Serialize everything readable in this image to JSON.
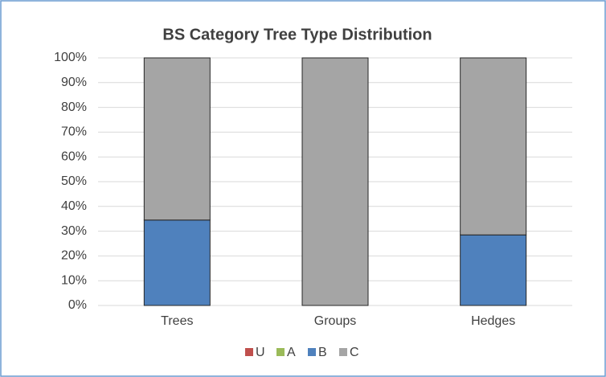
{
  "chart_data": {
    "type": "stacked_bar_100",
    "title": "BS Category Tree Type Distribution",
    "categories": [
      "Trees",
      "Groups",
      "Hedges"
    ],
    "series": [
      {
        "name": "U",
        "color": "#c0504d",
        "values": [
          0,
          0,
          0
        ]
      },
      {
        "name": "A",
        "color": "#9bbb59",
        "values": [
          0,
          0,
          0
        ]
      },
      {
        "name": "B",
        "color": "#4f81bd",
        "values": [
          34.5,
          0,
          28.5
        ]
      },
      {
        "name": "C",
        "color": "#a5a5a5",
        "values": [
          65.5,
          100,
          71.5
        ]
      }
    ],
    "ylim": [
      0,
      100
    ],
    "yticks": [
      {
        "value": 0,
        "label": "0%"
      },
      {
        "value": 10,
        "label": "10%"
      },
      {
        "value": 20,
        "label": "20%"
      },
      {
        "value": 30,
        "label": "30%"
      },
      {
        "value": 40,
        "label": "40%"
      },
      {
        "value": 50,
        "label": "50%"
      },
      {
        "value": 60,
        "label": "60%"
      },
      {
        "value": 70,
        "label": "70%"
      },
      {
        "value": 80,
        "label": "80%"
      },
      {
        "value": 90,
        "label": "90%"
      },
      {
        "value": 100,
        "label": "100%"
      }
    ],
    "grid": true,
    "legend": "bottom"
  }
}
